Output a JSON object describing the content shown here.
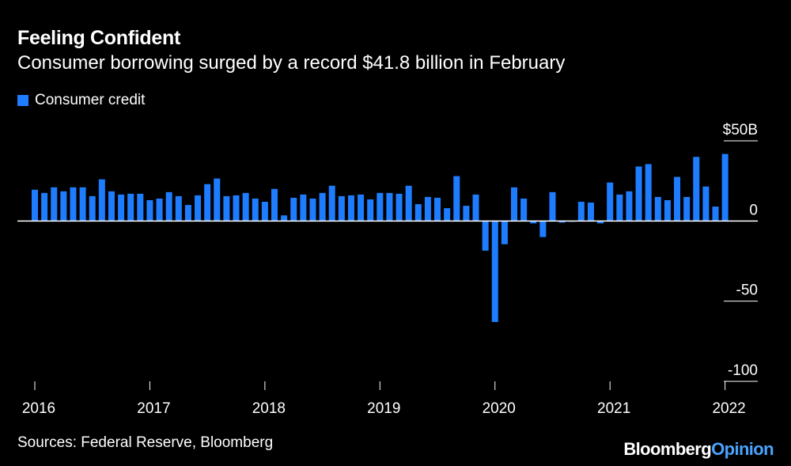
{
  "header": {
    "title": "Feeling Confident",
    "subtitle": "Consumer borrowing surged by a record $41.8 billion in February"
  },
  "footer": {
    "source": "Sources: Federal Reserve, Bloomberg",
    "brand_main": "Bloomberg",
    "brand_accent": "Opinion"
  },
  "colors": {
    "background": "#000000",
    "bar": "#1e7dff",
    "text": "#ffffff",
    "gridline": "#ffffff",
    "brand_accent": "#4aa3ff"
  },
  "chart_data": {
    "type": "bar",
    "title": "Feeling Confident",
    "subtitle": "Consumer borrowing surged by a record $41.8 billion in February",
    "ylabel": "",
    "xlabel": "",
    "ylim": [
      -100,
      50
    ],
    "y_ticks": [
      {
        "value": 50,
        "label": "$50B"
      },
      {
        "value": 0,
        "label": "0"
      },
      {
        "value": -50,
        "label": "-50"
      },
      {
        "value": -100,
        "label": "-100"
      }
    ],
    "y_axis_position": "right",
    "grid": false,
    "legend_position": "top-left",
    "x_start": "2016-01",
    "x_ticks": [
      {
        "date": "2016-01",
        "label": "2016"
      },
      {
        "date": "2017-01",
        "label": "2017"
      },
      {
        "date": "2018-01",
        "label": "2018"
      },
      {
        "date": "2019-01",
        "label": "2019"
      },
      {
        "date": "2020-01",
        "label": "2020"
      },
      {
        "date": "2021-01",
        "label": "2021"
      },
      {
        "date": "2022-01",
        "label": "2022"
      }
    ],
    "series": [
      {
        "name": "Consumer credit",
        "color": "#1e7dff",
        "values": [
          19.5,
          17.5,
          21,
          18.5,
          21,
          21,
          15.5,
          26,
          18.5,
          16.5,
          17,
          17,
          13,
          14,
          18,
          15.5,
          10,
          16,
          23,
          26.5,
          15.5,
          16,
          17.5,
          14,
          12,
          20,
          3.5,
          14.5,
          16.5,
          14,
          17.5,
          22,
          15.5,
          16,
          16.5,
          13.5,
          17.5,
          17.5,
          17,
          22,
          10.5,
          15,
          14.5,
          8,
          28,
          9.5,
          16.5,
          -18.5,
          -63,
          -14.5,
          21,
          14,
          -1.5,
          -10,
          18,
          -1,
          -0.5,
          12,
          11.5,
          -1.5,
          24,
          16.5,
          18.5,
          34,
          35.5,
          15,
          13,
          27.5,
          15,
          40,
          21.5,
          9,
          41.8
        ]
      }
    ]
  }
}
